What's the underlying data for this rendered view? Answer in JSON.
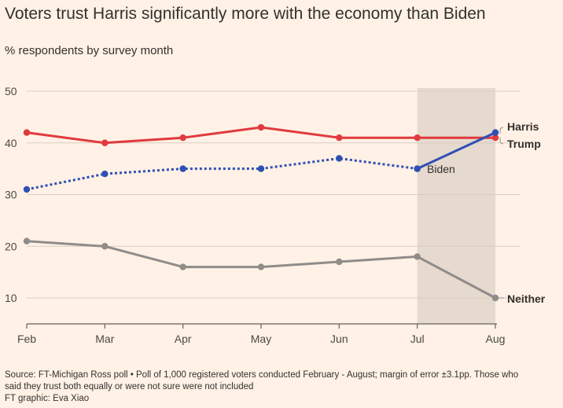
{
  "title": "Voters trust Harris significantly more with the economy than Biden",
  "subtitle": "% respondents by survey month",
  "source_line1": "Source: FT-Michigan Ross poll • Poll of 1,000 registered voters conducted February - August; margin of error ±3.1pp. Those who",
  "source_line2": "said they trust both equally or were not sure were not included",
  "credit": "FT graphic: Eva Xiao",
  "colors": {
    "background": "#fff1e5",
    "highlight_band": "#e6d9ce",
    "grid": "#d9cdc3",
    "axis": "#66605c",
    "trump": "#e03a3e",
    "biden_harris": "#2f4fb5",
    "neither": "#8f8c8a"
  },
  "chart_data": {
    "type": "line",
    "title": "Voters trust Harris significantly more with the economy than Biden",
    "subtitle": "% respondents by survey month",
    "x": [
      "Feb",
      "Mar",
      "Apr",
      "May",
      "Jun",
      "Jul",
      "Aug"
    ],
    "ylim": [
      5,
      50
    ],
    "yticks": [
      10,
      20,
      30,
      40,
      50
    ],
    "grid": true,
    "highlight_range": [
      "Jul",
      "Aug"
    ],
    "series": [
      {
        "name": "Trump",
        "color": "#e03a3e",
        "style": "solid",
        "values": [
          42,
          40,
          41,
          43,
          41,
          41,
          41
        ]
      },
      {
        "name": "Biden",
        "color": "#2f4fb5",
        "style": "dotted",
        "values": [
          31,
          34,
          35,
          35,
          37,
          35,
          null
        ]
      },
      {
        "name": "Harris",
        "color": "#2f4fb5",
        "style": "solid",
        "values": [
          null,
          null,
          null,
          null,
          null,
          35,
          42
        ]
      },
      {
        "name": "Neither",
        "color": "#8f8c8a",
        "style": "solid",
        "values": [
          21,
          20,
          16,
          16,
          17,
          18,
          10
        ]
      }
    ]
  }
}
